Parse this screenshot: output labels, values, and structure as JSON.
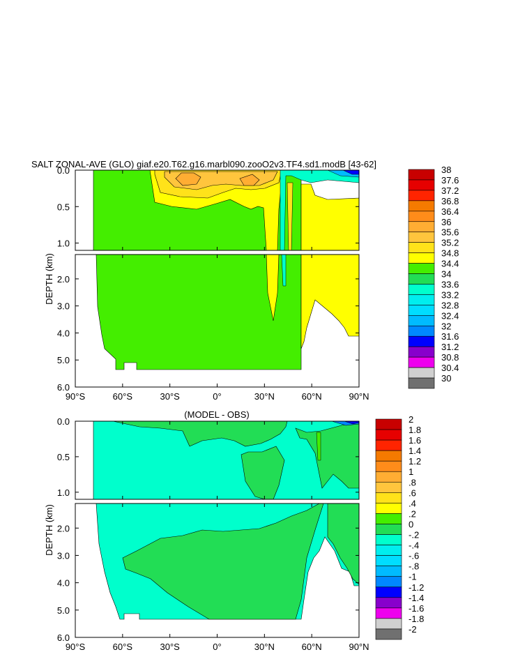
{
  "chart_data": [
    {
      "type": "contour",
      "title": "SALT ZONAL-AVE (GLO) giaf.e20.T62.g16.marbl090.zooO2v3.TF4.sd1.modB [43-62]",
      "ylabel": "DEPTH (km)",
      "x_ticks": [
        {
          "value": -90,
          "label": "90°S"
        },
        {
          "value": -60,
          "label": "60°S"
        },
        {
          "value": -30,
          "label": "30°S"
        },
        {
          "value": 0,
          "label": "0°"
        },
        {
          "value": 30,
          "label": "30°N"
        },
        {
          "value": 60,
          "label": "60°N"
        },
        {
          "value": 90,
          "label": "90°N"
        }
      ],
      "upper_panel": {
        "ylim": [
          0,
          1.1
        ],
        "ticks": [
          {
            "value": 0,
            "label": "0.0"
          },
          {
            "value": 0.5,
            "label": "0.5"
          },
          {
            "value": 1.0,
            "label": "1.0"
          }
        ]
      },
      "lower_panel": {
        "ylim": [
          1.1,
          6.0
        ],
        "ticks": [
          {
            "value": 2,
            "label": "2.0"
          },
          {
            "value": 3,
            "label": "3.0"
          },
          {
            "value": 4,
            "label": "4.0"
          },
          {
            "value": 5,
            "label": "5.0"
          },
          {
            "value": 6,
            "label": "6.0"
          }
        ]
      },
      "colorbar": {
        "labels": [
          "38",
          "37.6",
          "37.2",
          "36.8",
          "36.4",
          "36",
          "35.6",
          "35.2",
          "34.8",
          "34.4",
          "34",
          "33.6",
          "33.2",
          "32.8",
          "32.4",
          "32",
          "31.6",
          "31.2",
          "30.8",
          "30.4",
          "30"
        ],
        "colors": [
          "#c80000",
          "#e60000",
          "#ff2400",
          "#f57a00",
          "#ff8c1a",
          "#ffad33",
          "#ffc53d",
          "#ffe21a",
          "#ffff00",
          "#44ee00",
          "#22dd55",
          "#00ffcc",
          "#00eeee",
          "#00ddff",
          "#00bbff",
          "#0088ff",
          "#0000ff",
          "#8800cc",
          "#ee00ee",
          "#d0d0d0",
          "#707070"
        ]
      }
    },
    {
      "type": "contour",
      "title": "(MODEL - OBS)",
      "ylabel": "DEPTH (km)",
      "x_ticks": [
        {
          "value": -90,
          "label": "90°S"
        },
        {
          "value": -60,
          "label": "60°S"
        },
        {
          "value": -30,
          "label": "30°S"
        },
        {
          "value": 0,
          "label": "0°"
        },
        {
          "value": 30,
          "label": "30°N"
        },
        {
          "value": 60,
          "label": "60°N"
        },
        {
          "value": 90,
          "label": "90°N"
        }
      ],
      "upper_panel": {
        "ylim": [
          0,
          1.1
        ],
        "ticks": [
          {
            "value": 0,
            "label": "0.0"
          },
          {
            "value": 0.5,
            "label": "0.5"
          },
          {
            "value": 1.0,
            "label": "1.0"
          }
        ]
      },
      "lower_panel": {
        "ylim": [
          1.1,
          6.0
        ],
        "ticks": [
          {
            "value": 2,
            "label": "2.0"
          },
          {
            "value": 3,
            "label": "3.0"
          },
          {
            "value": 4,
            "label": "4.0"
          },
          {
            "value": 5,
            "label": "5.0"
          },
          {
            "value": 6,
            "label": "6.0"
          }
        ]
      },
      "colorbar": {
        "labels": [
          "2",
          "1.8",
          "1.6",
          "1.4",
          "1.2",
          "1",
          ".8",
          ".6",
          ".4",
          ".2",
          "0",
          "-.2",
          "-.4",
          "-.6",
          "-.8",
          "-1",
          "-1.2",
          "-1.4",
          "-1.6",
          "-1.8",
          "-2"
        ],
        "colors": [
          "#c80000",
          "#e60000",
          "#ff2400",
          "#f57a00",
          "#ff8c1a",
          "#ffad33",
          "#ffc53d",
          "#ffe21a",
          "#ffff00",
          "#44ee00",
          "#22dd55",
          "#00ffcc",
          "#00eeee",
          "#00ddff",
          "#00bbff",
          "#0088ff",
          "#0000ff",
          "#8800cc",
          "#ee00ee",
          "#d0d0d0",
          "#707070"
        ]
      }
    }
  ]
}
